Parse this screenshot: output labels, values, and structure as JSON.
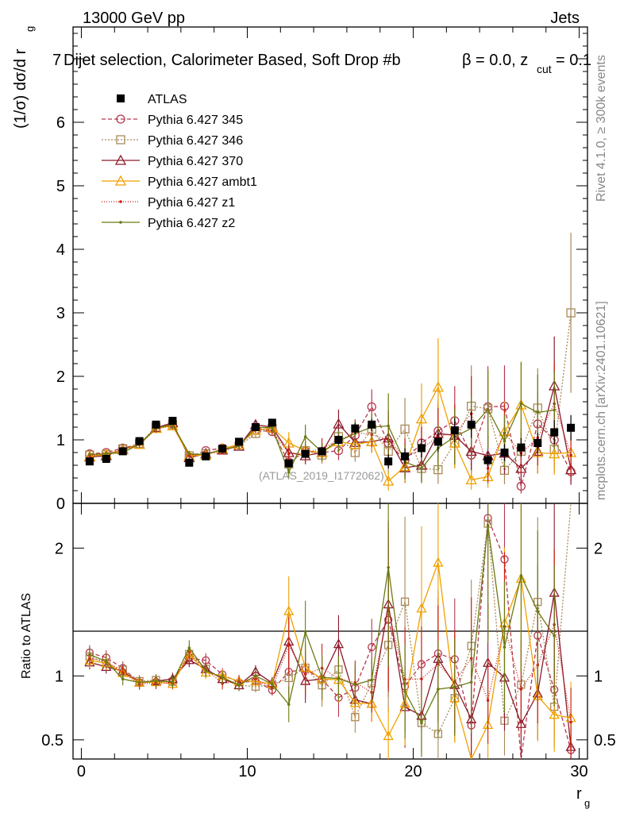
{
  "header": {
    "left": "13000 GeV pp",
    "right": "Jets",
    "selection": "Dijet selection, Calorimeter Based, Soft Drop #b",
    "beta_text": "β = 0.0, z",
    "beta_sub": "cut",
    "beta_val": " = 0.1",
    "top_tick_fragment": "7"
  },
  "side_labels": {
    "rivet": "Rivet 4.1.0, ≥ 300k events",
    "mcplots": "mcplots.cern.ch [arXiv:2401.10621]"
  },
  "watermark": "(ATLAS_2019_I1772062)",
  "axes": {
    "y_main_label": "(1/σ) dσ/d r",
    "y_main_sub": "g",
    "y_ratio_label": "Ratio to ATLAS",
    "x_label": "r",
    "x_sub": "g"
  },
  "colors": {
    "data": "#000000",
    "p345": "#b5374f",
    "p346": "#a8895a",
    "p370": "#8b1a2b",
    "ambt1": "#f0a000",
    "z1": "#cc1f10",
    "z2": "#6b7a10"
  },
  "chart_data": {
    "type": "scatter",
    "x": [
      0.5,
      1.5,
      2.5,
      3.5,
      4.5,
      5.5,
      6.5,
      7.5,
      8.5,
      9.5,
      10.5,
      11.5,
      12.5,
      13.5,
      14.5,
      15.5,
      16.5,
      17.5,
      18.5,
      19.5,
      20.5,
      21.5,
      22.5,
      23.5,
      24.5,
      25.5,
      26.5,
      27.5,
      28.5,
      29.5
    ],
    "xlim": [
      -0.5,
      30.5
    ],
    "ylim_main": [
      0,
      7.5
    ],
    "ylim_ratio": [
      0.35,
      2.35
    ],
    "x_ticks": [
      0,
      10,
      20,
      30
    ],
    "y_ticks_main": [
      0,
      1,
      2,
      3,
      4,
      5,
      6,
      7
    ],
    "y_ticks_ratio": [
      0.5,
      1,
      2
    ],
    "data": {
      "name": "ATLAS",
      "values": [
        0.66,
        0.7,
        0.82,
        0.98,
        1.24,
        1.3,
        0.64,
        0.74,
        0.86,
        0.97,
        1.2,
        1.27,
        0.63,
        0.78,
        0.82,
        1.0,
        1.18,
        1.24,
        0.66,
        0.74,
        0.87,
        0.97,
        1.15,
        1.24,
        0.68,
        0.8,
        0.88,
        0.95,
        1.12,
        1.19
      ]
    },
    "series": [
      {
        "name": "Pythia 6.427 345",
        "key": "p345",
        "marker": "circle",
        "dash": "5,3",
        "values": [
          0.78,
          0.8,
          0.87,
          0.93,
          1.18,
          1.25,
          0.73,
          0.83,
          0.87,
          0.92,
          1.15,
          1.13,
          0.65,
          0.82,
          0.8,
          0.83,
          1.07,
          1.52,
          0.95,
          0.68,
          0.95,
          1.14,
          1.3,
          0.76,
          1.52,
          1.53,
          0.27,
          1.25,
          1.0,
          0.5
        ]
      },
      {
        "name": "Pythia 6.427 346",
        "key": "p346",
        "marker": "square",
        "dash": "2,2",
        "values": [
          0.76,
          0.77,
          0.86,
          0.94,
          1.2,
          1.24,
          0.75,
          0.78,
          0.84,
          0.9,
          1.1,
          1.18,
          0.62,
          0.83,
          0.76,
          1.05,
          0.8,
          1.17,
          0.82,
          1.17,
          0.55,
          0.53,
          0.95,
          1.53,
          1.49,
          0.52,
          0.82,
          1.5,
          0.85,
          3.0
        ]
      },
      {
        "name": "Pythia 6.427 370",
        "key": "p370",
        "marker": "triangle",
        "dash": "",
        "values": [
          0.73,
          0.75,
          0.85,
          0.93,
          1.19,
          1.27,
          0.72,
          0.78,
          0.84,
          0.9,
          1.24,
          1.2,
          0.8,
          0.75,
          0.8,
          1.25,
          0.96,
          0.97,
          1.03,
          0.56,
          0.6,
          1.1,
          1.07,
          0.82,
          0.75,
          0.79,
          0.55,
          0.82,
          1.85,
          0.53
        ]
      },
      {
        "name": "Pythia 6.427 ambt1",
        "key": "ambt1",
        "marker": "triangle",
        "dash": "",
        "values": [
          0.74,
          0.77,
          0.84,
          0.93,
          1.18,
          1.22,
          0.75,
          0.76,
          0.86,
          0.93,
          1.15,
          1.19,
          0.95,
          0.83,
          0.8,
          0.97,
          0.93,
          0.97,
          0.35,
          0.58,
          1.33,
          1.83,
          0.95,
          0.37,
          0.42,
          1.13,
          1.55,
          0.8,
          0.78,
          0.8
        ]
      },
      {
        "name": "Pythia 6.427 z1",
        "key": "z1",
        "marker": "dot",
        "dash": "1,2",
        "values": [
          0.75,
          0.78,
          0.84,
          0.92,
          1.17,
          1.23,
          0.76,
          0.78,
          0.81,
          0.93,
          1.17,
          1.15,
          0.78,
          0.79,
          0.87,
          0.98,
          1.12,
          1.08,
          1.0,
          0.72,
          0.85,
          1.06,
          1.1,
          1.41,
          0.55,
          1.11,
          0.79,
          1.03,
          1.57,
          0.76
        ]
      },
      {
        "name": "Pythia 6.427 z2",
        "key": "z2",
        "marker": "dot",
        "dash": "",
        "values": [
          0.77,
          0.78,
          0.8,
          0.93,
          1.19,
          1.24,
          0.78,
          0.77,
          0.85,
          0.9,
          1.2,
          1.19,
          0.49,
          1.05,
          0.81,
          0.98,
          1.1,
          1.2,
          1.22,
          0.65,
          0.55,
          0.87,
          1.05,
          1.18,
          1.48,
          0.98,
          1.57,
          1.43,
          1.47,
          null
        ]
      }
    ]
  }
}
